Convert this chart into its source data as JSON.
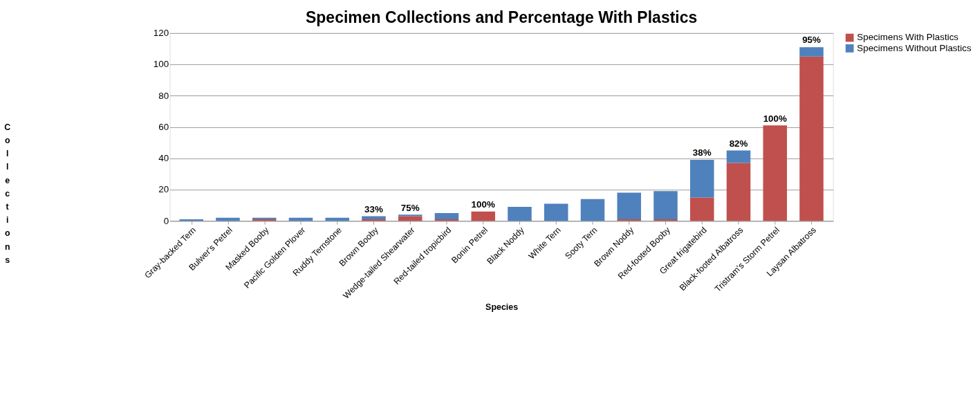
{
  "chart_data": {
    "type": "bar",
    "title": "Specimen Collections and Percentage With Plastics",
    "xlabel": "Species",
    "ylabel": "Collections",
    "categories": [
      "Gray-backed Tern",
      "Bulwer's Petrel",
      "Masked Booby",
      "Pacific Golden Plover",
      "Ruddy Ternstone",
      "Brown Booby",
      "Wedge-tailed Shearwater",
      "Red-tailed tropicbird",
      "Bonin Petrel",
      "Black Noddy",
      "White Tern",
      "Sooty Tern",
      "Brown Noddy",
      "Red-footed Booby",
      "Great frigatebird",
      "Black-footed Albatross",
      "Tristram's Storm Petrel",
      "Laysan Albatross"
    ],
    "stacked": true,
    "series": [
      {
        "name": "Specimens With Plastics",
        "color": "#c0504d",
        "values": [
          0,
          0,
          1,
          0,
          0,
          1,
          3,
          1,
          6,
          0,
          0,
          0,
          1,
          1,
          15,
          37,
          61,
          105
        ]
      },
      {
        "name": "Specimens Without Plastics",
        "color": "#4f81bd",
        "values": [
          1,
          2,
          1,
          2,
          2,
          2,
          1,
          4,
          0,
          9,
          11,
          14,
          17,
          18,
          24,
          8,
          0,
          6
        ]
      }
    ],
    "ylim": [
      0,
      120
    ],
    "yticks": [
      0,
      20,
      40,
      60,
      80,
      100,
      120
    ],
    "grid": "y",
    "legend": "right",
    "annotations": [
      {
        "text": "33%",
        "x": "Brown Booby",
        "y": 3
      },
      {
        "text": "75%",
        "x": "Wedge-tailed Shearwater",
        "y": 4
      },
      {
        "text": "100%",
        "x": "Bonin Petrel",
        "y": 6
      },
      {
        "text": "38%",
        "x": "Great frigatebird",
        "y": 39
      },
      {
        "text": "82%",
        "x": "Black-footed Albatross",
        "y": 45
      },
      {
        "text": "100%",
        "x": "Tristram's Storm Petrel",
        "y": 61
      },
      {
        "text": "95%",
        "x": "Laysan Albatross",
        "y": 111
      }
    ]
  }
}
